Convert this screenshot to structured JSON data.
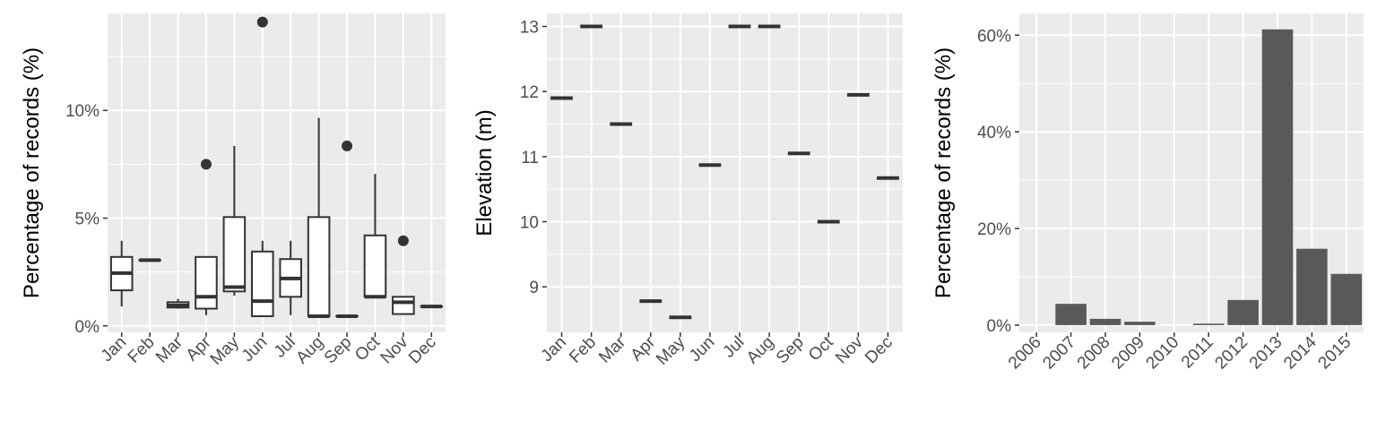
{
  "chart_data": [
    {
      "type": "boxplot",
      "ylabel": "Percentage of records (%)",
      "ylim": [
        -0.3,
        14.5
      ],
      "y_ticks": [
        0,
        5,
        10
      ],
      "y_tick_labels": [
        "0%",
        "5%",
        "10%"
      ],
      "categories": [
        "Jan",
        "Feb",
        "Mar",
        "Apr",
        "May",
        "Jun",
        "Jul",
        "Aug",
        "Sep",
        "Oct",
        "Nov",
        "Dec"
      ],
      "boxes": [
        {
          "min": 0.9,
          "q1": 1.65,
          "median": 2.45,
          "q3": 3.2,
          "max": 3.95,
          "outliers": []
        },
        {
          "min": 3.05,
          "q1": 3.05,
          "median": 3.05,
          "q3": 3.05,
          "max": 3.05,
          "outliers": []
        },
        {
          "min": 0.8,
          "q1": 0.85,
          "median": 0.95,
          "q3": 1.1,
          "max": 1.25,
          "outliers": []
        },
        {
          "min": 0.5,
          "q1": 0.8,
          "median": 1.35,
          "q3": 3.2,
          "max": 3.2,
          "outliers": [
            7.5
          ]
        },
        {
          "min": 1.4,
          "q1": 1.6,
          "median": 1.8,
          "q3": 5.05,
          "max": 8.35,
          "outliers": []
        },
        {
          "min": 0.45,
          "q1": 0.45,
          "median": 1.15,
          "q3": 3.45,
          "max": 3.95,
          "outliers": [
            14.1
          ]
        },
        {
          "min": 0.5,
          "q1": 1.35,
          "median": 2.2,
          "q3": 3.1,
          "max": 3.95,
          "outliers": []
        },
        {
          "min": 0.45,
          "q1": 0.45,
          "median": 0.45,
          "q3": 5.05,
          "max": 9.65,
          "outliers": []
        },
        {
          "min": 0.45,
          "q1": 0.45,
          "median": 0.45,
          "q3": 0.45,
          "max": 0.45,
          "outliers": [
            8.35
          ]
        },
        {
          "min": 1.35,
          "q1": 1.35,
          "median": 1.35,
          "q3": 4.2,
          "max": 7.05,
          "outliers": []
        },
        {
          "min": 0.55,
          "q1": 0.55,
          "median": 1.1,
          "q3": 1.35,
          "max": 1.35,
          "outliers": [
            3.95
          ]
        },
        {
          "min": 0.9,
          "q1": 0.9,
          "median": 0.9,
          "q3": 0.9,
          "max": 0.9,
          "outliers": []
        }
      ]
    },
    {
      "type": "boxplot",
      "ylabel": "Elevation (m)",
      "ylim": [
        8.3,
        13.2
      ],
      "y_ticks": [
        9,
        10,
        11,
        12,
        13
      ],
      "y_tick_labels": [
        "9",
        "10",
        "11",
        "12",
        "13"
      ],
      "categories": [
        "Jan",
        "Feb",
        "Mar",
        "Apr",
        "May",
        "Jun",
        "Jul",
        "Aug",
        "Sep",
        "Oct",
        "Nov",
        "Dec"
      ],
      "values": [
        11.9,
        13.0,
        11.5,
        8.78,
        8.53,
        10.87,
        13.0,
        13.0,
        11.05,
        10.0,
        11.95,
        10.67
      ]
    },
    {
      "type": "bar",
      "ylabel": "Percentage of records (%)",
      "ylim": [
        -1.5,
        64.5
      ],
      "y_ticks": [
        0,
        20,
        40,
        60
      ],
      "y_tick_labels": [
        "0%",
        "20%",
        "40%",
        "60%"
      ],
      "categories": [
        "2006",
        "2007",
        "2008",
        "2009",
        "2010",
        "2011",
        "2012",
        "2013",
        "2014",
        "2015"
      ],
      "values": [
        0,
        4.4,
        1.3,
        0.7,
        0,
        0.3,
        5.2,
        61.2,
        15.8,
        10.6
      ],
      "bar_color": "#595959"
    }
  ],
  "style": {
    "panel_bg": "#ebebeb",
    "grid_major": "#ffffff",
    "text_color": "#4d4d4d",
    "box_line": "#333333",
    "box_fill": "#ffffff"
  }
}
